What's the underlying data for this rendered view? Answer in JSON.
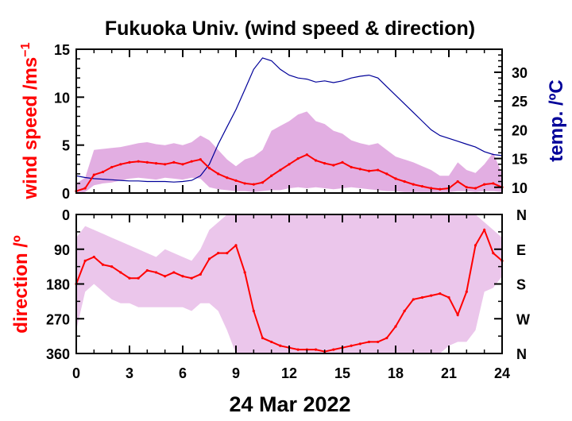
{
  "chart_data": [
    {
      "type": "line",
      "panel": "wind-speed-temperature",
      "title": "Fukuoka Univ. (wind speed & direction)",
      "xlabel": "24 Mar 2022",
      "xlim": [
        0,
        24
      ],
      "x_ticks": [
        "0",
        "3",
        "6",
        "9",
        "12",
        "15",
        "18",
        "21",
        "24"
      ],
      "ylabel": "wind speed /ms",
      "ylabel_superscript": "−1",
      "ylim": [
        0,
        15
      ],
      "y_ticks": [
        "0",
        "5",
        "10",
        "15"
      ],
      "y2label": "temp. /ºC",
      "y2lim": [
        9,
        34
      ],
      "y2_ticks": [
        "10",
        "15",
        "20",
        "25",
        "30"
      ],
      "series": [
        {
          "role": "wind-speed-gust-band",
          "color": "#dda0dd",
          "x": [
            0,
            0.5,
            1,
            1.5,
            2,
            2.5,
            3,
            3.5,
            4,
            4.5,
            5,
            5.5,
            6,
            6.5,
            7,
            7.5,
            8,
            8.5,
            9,
            9.5,
            10,
            10.5,
            11,
            11.5,
            12,
            12.5,
            13,
            13.5,
            14,
            14.5,
            15,
            15.5,
            16,
            16.5,
            17,
            17.5,
            18,
            18.5,
            19,
            19.5,
            20,
            20.5,
            21,
            21.5,
            22,
            22.5,
            23,
            23.5,
            24
          ],
          "low": [
            0,
            0.1,
            0.8,
            1.0,
            1.1,
            1.3,
            1.5,
            1.6,
            1.5,
            1.4,
            1.6,
            1.5,
            1.4,
            1.6,
            1.5,
            0.6,
            0.4,
            0.3,
            0.2,
            0.2,
            0.1,
            0.2,
            0.3,
            0.3,
            0.5,
            0.6,
            0.5,
            0.6,
            0.5,
            0.4,
            0.5,
            0.6,
            0.5,
            0.4,
            0.3,
            0.2,
            0.2,
            0.1,
            0.1,
            0.1,
            0.1,
            0.1,
            0.1,
            0.2,
            0.2,
            0.1,
            0.2,
            0.2,
            0.1
          ],
          "high": [
            1.0,
            1.6,
            4.5,
            4.6,
            4.7,
            4.8,
            5.0,
            5.2,
            5.3,
            5.1,
            5.0,
            5.2,
            5.0,
            5.3,
            6.0,
            5.5,
            4.5,
            3.5,
            2.8,
            3.5,
            3.8,
            4.5,
            6.5,
            7.0,
            7.5,
            8.2,
            8.5,
            7.5,
            7.2,
            6.5,
            6.2,
            5.5,
            5.2,
            5.0,
            5.2,
            4.5,
            3.8,
            3.5,
            3.2,
            2.8,
            2.4,
            1.8,
            1.8,
            3.2,
            2.4,
            2.1,
            3.0,
            4.2,
            2.0
          ]
        },
        {
          "role": "wind-speed-mean",
          "color": "#ff0000",
          "x": [
            0,
            0.5,
            1,
            1.5,
            2,
            2.5,
            3,
            3.5,
            4,
            4.5,
            5,
            5.5,
            6,
            6.5,
            7,
            7.5,
            8,
            8.5,
            9,
            9.5,
            10,
            10.5,
            11,
            11.5,
            12,
            12.5,
            13,
            13.5,
            14,
            14.5,
            15,
            15.5,
            16,
            16.5,
            17,
            17.5,
            18,
            18.5,
            19,
            19.5,
            20,
            20.5,
            21,
            21.5,
            22,
            22.5,
            23,
            23.5,
            24
          ],
          "y": [
            0.2,
            0.5,
            1.9,
            2.2,
            2.7,
            3.0,
            3.2,
            3.3,
            3.2,
            3.1,
            3.0,
            3.2,
            3.0,
            3.3,
            3.5,
            2.6,
            2.0,
            1.6,
            1.3,
            1.0,
            0.9,
            1.1,
            1.8,
            2.4,
            3.0,
            3.6,
            4.0,
            3.4,
            3.1,
            2.9,
            3.2,
            2.7,
            2.5,
            2.3,
            2.4,
            2.0,
            1.5,
            1.2,
            0.9,
            0.7,
            0.5,
            0.4,
            0.5,
            1.2,
            0.6,
            0.5,
            0.9,
            1.0,
            0.6
          ]
        },
        {
          "role": "temperature",
          "axis": "y2",
          "color": "#000099",
          "x": [
            0,
            0.5,
            1,
            1.5,
            2,
            2.5,
            3,
            3.5,
            4,
            4.5,
            5,
            5.5,
            6,
            6.5,
            7,
            7.5,
            8,
            8.5,
            9,
            9.5,
            10,
            10.5,
            11,
            11.5,
            12,
            12.5,
            13,
            13.5,
            14,
            14.5,
            15,
            15.5,
            16,
            16.5,
            17,
            17.5,
            18,
            18.5,
            19,
            19.5,
            20,
            20.5,
            21,
            21.5,
            22,
            22.5,
            23,
            23.5,
            24
          ],
          "y": [
            12.0,
            11.7,
            11.5,
            11.4,
            11.3,
            11.2,
            11.1,
            11.1,
            11.0,
            11.0,
            11.0,
            10.9,
            11.0,
            11.2,
            12.0,
            14.0,
            17.5,
            20.5,
            23.5,
            27.0,
            30.5,
            32.5,
            32.0,
            30.5,
            29.5,
            29.0,
            28.8,
            28.3,
            28.5,
            28.2,
            28.5,
            29.0,
            29.3,
            29.5,
            29.0,
            27.5,
            26.0,
            24.5,
            23.0,
            21.5,
            20.0,
            19.0,
            18.5,
            18.0,
            17.5,
            17.0,
            16.2,
            15.7,
            15.5
          ]
        }
      ]
    },
    {
      "type": "scatter",
      "panel": "wind-direction",
      "xlabel": "24 Mar 2022",
      "xlim": [
        0,
        24
      ],
      "x_ticks": [
        "0",
        "3",
        "6",
        "9",
        "12",
        "15",
        "18",
        "21",
        "24"
      ],
      "ylabel": "direction /º",
      "ylim": [
        0,
        360
      ],
      "y_reversed": true,
      "y_ticks": [
        "0",
        "90",
        "180",
        "270",
        "360"
      ],
      "y2_ticks": [
        "N",
        "E",
        "S",
        "W",
        "N"
      ],
      "series": [
        {
          "role": "direction-spread",
          "color": "#dda0dd",
          "x": [
            0,
            0.5,
            1,
            1.5,
            2,
            2.5,
            3,
            3.5,
            4,
            4.5,
            5,
            5.5,
            6,
            6.5,
            7,
            7.5,
            8,
            8.5,
            9,
            9.5,
            10,
            10.5,
            11,
            11.5,
            12,
            12.5,
            13,
            13.5,
            14,
            14.5,
            15,
            15.5,
            16,
            16.5,
            17,
            17.5,
            18,
            18.5,
            19,
            19.5,
            20,
            20.5,
            21,
            21.5,
            22,
            22.5,
            23,
            23.5,
            24
          ],
          "low": [
            60,
            30,
            40,
            50,
            60,
            70,
            80,
            90,
            100,
            110,
            90,
            100,
            110,
            120,
            90,
            40,
            20,
            0,
            0,
            0,
            0,
            0,
            0,
            0,
            0,
            0,
            0,
            0,
            0,
            0,
            0,
            0,
            0,
            0,
            0,
            0,
            0,
            0,
            0,
            0,
            0,
            0,
            0,
            0,
            0,
            0,
            20,
            40,
            60
          ],
          "high": [
            300,
            200,
            180,
            200,
            220,
            230,
            230,
            240,
            240,
            240,
            240,
            240,
            240,
            250,
            230,
            230,
            250,
            300,
            360,
            360,
            360,
            360,
            360,
            360,
            360,
            360,
            360,
            360,
            360,
            360,
            360,
            360,
            360,
            360,
            360,
            360,
            360,
            360,
            360,
            360,
            360,
            360,
            340,
            330,
            330,
            300,
            200,
            190,
            160
          ]
        },
        {
          "role": "direction-mean",
          "color": "#ff0000",
          "x": [
            0,
            0.5,
            1,
            1.5,
            2,
            2.5,
            3,
            3.5,
            4,
            4.5,
            5,
            5.5,
            6,
            6.5,
            7,
            7.5,
            8,
            8.5,
            9,
            9.5,
            10,
            10.5,
            11,
            11.5,
            12,
            12.5,
            13,
            13.5,
            14,
            14.5,
            15,
            15.5,
            16,
            16.5,
            17,
            17.5,
            18,
            18.5,
            19,
            19.5,
            20,
            20.5,
            21,
            21.5,
            22,
            22.5,
            23,
            23.5,
            24
          ],
          "y": [
            180,
            120,
            110,
            130,
            135,
            150,
            165,
            165,
            145,
            150,
            160,
            150,
            160,
            165,
            155,
            115,
            100,
            100,
            80,
            150,
            250,
            320,
            330,
            340,
            345,
            350,
            350,
            350,
            355,
            350,
            345,
            340,
            335,
            330,
            330,
            320,
            290,
            250,
            220,
            215,
            210,
            205,
            215,
            260,
            200,
            80,
            40,
            100,
            120
          ]
        }
      ]
    }
  ]
}
